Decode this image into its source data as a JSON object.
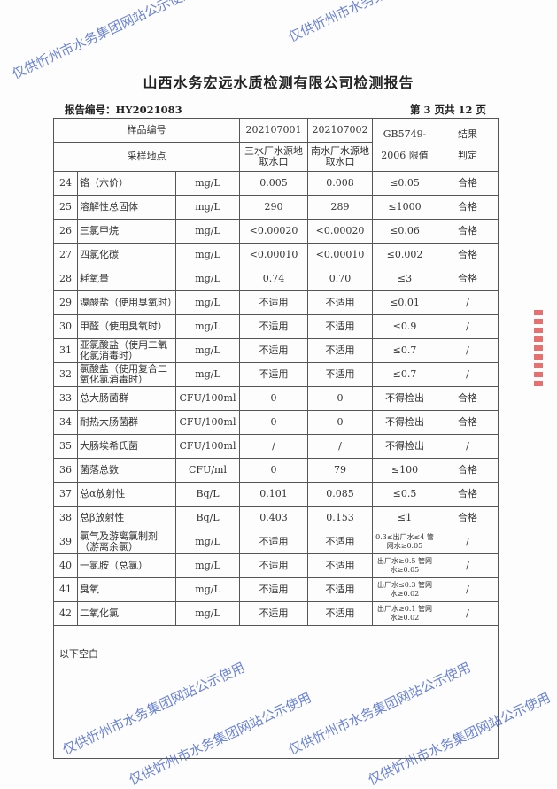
{
  "title": "山西水务宏远水质检测有限公司检测报告",
  "report_no": "报告编号：HY2021083",
  "page_no": "第 3 页共 12 页",
  "header": {
    "sample_no": "样品编号",
    "s1": "202107001",
    "s2": "202107002",
    "std": "GB5749-",
    "std2": "2006 限值",
    "result": "结果",
    "result2": "判定",
    "site": "采样地点",
    "site1": "三水厂水源地取水口",
    "site2": "南水厂水源地取水口"
  },
  "rows": [
    [
      "24",
      "铬（六价）",
      "mg/L",
      "0.005",
      "0.008",
      "≤0.05",
      "合格"
    ],
    [
      "25",
      "溶解性总固体",
      "mg/L",
      "290",
      "289",
      "≤1000",
      "合格"
    ],
    [
      "26",
      "三氯甲烷",
      "mg/L",
      "<0.00020",
      "<0.00020",
      "≤0.06",
      "合格"
    ],
    [
      "27",
      "四氯化碳",
      "mg/L",
      "<0.00010",
      "<0.00010",
      "≤0.002",
      "合格"
    ],
    [
      "28",
      "耗氧量",
      "mg/L",
      "0.74",
      "0.70",
      "≤3",
      "合格"
    ],
    [
      "29",
      "溴酸盐（使用臭氧时）",
      "mg/L",
      "不适用",
      "不适用",
      "≤0.01",
      "/"
    ],
    [
      "30",
      "甲醛（使用臭氧时）",
      "mg/L",
      "不适用",
      "不适用",
      "≤0.9",
      "/"
    ],
    [
      "31",
      "亚氯酸盐（使用二氧化氯消毒时）",
      "mg/L",
      "不适用",
      "不适用",
      "≤0.7",
      "/"
    ],
    [
      "32",
      "氯酸盐（使用复合二氧化氯消毒时）",
      "mg/L",
      "不适用",
      "不适用",
      "≤0.7",
      "/"
    ],
    [
      "33",
      "总大肠菌群",
      "CFU/100ml",
      "0",
      "0",
      "不得检出",
      "合格"
    ],
    [
      "34",
      "耐热大肠菌群",
      "CFU/100ml",
      "0",
      "0",
      "不得检出",
      "合格"
    ],
    [
      "35",
      "大肠埃希氏菌",
      "CFU/100ml",
      "/",
      "/",
      "不得检出",
      "/"
    ],
    [
      "36",
      "菌落总数",
      "CFU/ml",
      "0",
      "79",
      "≤100",
      "合格"
    ],
    [
      "37",
      "总α放射性",
      "Bq/L",
      "0.101",
      "0.085",
      "≤0.5",
      "合格"
    ],
    [
      "38",
      "总β放射性",
      "Bq/L",
      "0.403",
      "0.153",
      "≤1",
      "合格"
    ],
    [
      "39",
      "氯气及游离氯制剂（游离余氯）",
      "mg/L",
      "不适用",
      "不适用",
      "0.3≤出厂水≤4 管网水≥0.05",
      "/"
    ],
    [
      "40",
      "一氯胺（总氯）",
      "mg/L",
      "不适用",
      "不适用",
      "出厂水≥0.5 管网水≥0.05",
      "/"
    ],
    [
      "41",
      "臭氧",
      "mg/L",
      "不适用",
      "不适用",
      "出厂水≤0.3 管网水≥0.02",
      "/"
    ],
    [
      "42",
      "二氧化氯",
      "mg/L",
      "不适用",
      "不适用",
      "出厂水≥0.1 管网水≥0.02",
      "/"
    ]
  ],
  "footer_note": "以下空白",
  "watermark": "仅供忻州市水务集团网站公示使用"
}
